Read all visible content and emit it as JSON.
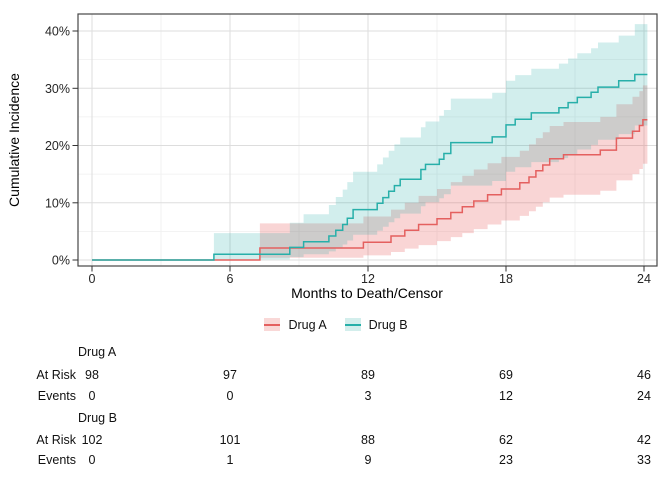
{
  "figure": {
    "y_axis_title": "Cumulative Incidence",
    "x_axis_title": "Months to Death/Censor"
  },
  "legend": {
    "items": [
      {
        "label": "Drug A"
      },
      {
        "label": "Drug B"
      }
    ]
  },
  "colors": {
    "drug_a_line": "#E4605F",
    "drug_a_band": "#E75D5C",
    "drug_a_band_opacity": 0.26,
    "drug_a_key_bg": "#F9D8D7",
    "drug_b_line": "#27AFA9",
    "drug_b_band": "#20AAA5",
    "drug_b_band_opacity": 0.2,
    "drug_b_key_bg": "#D3EEEC",
    "grid_major": "#DDDDDD",
    "grid_minor": "#EFEFEF",
    "panel_border": "#474747",
    "tick": "#333333",
    "text": "#111111"
  },
  "chart_data": {
    "type": "line",
    "subtype": "step-cumulative-incidence-with-confidence-bands",
    "title": "",
    "xlabel": "Months to Death/Censor",
    "ylabel": "Cumulative Incidence",
    "xlim": [
      0,
      24.6
    ],
    "ylim": [
      0,
      43
    ],
    "x_ticks": [
      0,
      6,
      12,
      18,
      24
    ],
    "x_minor_ticks": [
      3,
      9,
      15,
      21
    ],
    "y_ticks": [
      0,
      10,
      20,
      30,
      40
    ],
    "y_tick_labels": [
      "0%",
      "10%",
      "20%",
      "30%",
      "40%"
    ],
    "y_minor_ticks": [
      5,
      15,
      25,
      35
    ],
    "grid": true,
    "legend_position": "bottom",
    "points_format": [
      "month",
      "estimate_pct",
      "ci_lower_pct",
      "ci_upper_pct"
    ],
    "series": [
      {
        "name": "Drug A",
        "color": "#E4605F",
        "points": [
          [
            0,
            0,
            0,
            0
          ],
          [
            7.3,
            2.1,
            0.4,
            6.4
          ],
          [
            11.8,
            3.1,
            0.8,
            7.6
          ],
          [
            13.0,
            4.2,
            1.4,
            8.8
          ],
          [
            13.6,
            5.2,
            2.0,
            10.0
          ],
          [
            14.2,
            6.2,
            2.6,
            11.2
          ],
          [
            15.0,
            7.2,
            3.3,
            12.4
          ],
          [
            15.6,
            8.3,
            4.0,
            13.6
          ],
          [
            16.1,
            9.3,
            4.7,
            14.7
          ],
          [
            16.6,
            10.3,
            5.4,
            15.8
          ],
          [
            17.2,
            11.4,
            6.2,
            16.9
          ],
          [
            17.8,
            12.4,
            6.9,
            18.0
          ],
          [
            18.6,
            13.5,
            7.7,
            19.1
          ],
          [
            19.0,
            14.5,
            8.5,
            20.2
          ],
          [
            19.3,
            15.6,
            9.3,
            21.3
          ],
          [
            19.6,
            16.6,
            10.1,
            22.3
          ],
          [
            19.9,
            17.7,
            10.9,
            23.4
          ],
          [
            20.5,
            18.4,
            11.4,
            24.1
          ],
          [
            22.1,
            19.2,
            12.1,
            25.0
          ],
          [
            22.8,
            21.3,
            13.9,
            27.2
          ],
          [
            23.5,
            22.5,
            15.0,
            28.5
          ],
          [
            23.8,
            23.5,
            15.9,
            29.5
          ],
          [
            23.95,
            24.5,
            16.8,
            30.5
          ],
          [
            24.15,
            24.5,
            16.8,
            30.5
          ]
        ]
      },
      {
        "name": "Drug B",
        "color": "#27AFA9",
        "points": [
          [
            0,
            0,
            0,
            0
          ],
          [
            5.3,
            1.0,
            0.1,
            4.7
          ],
          [
            8.6,
            2.2,
            0.5,
            6.5
          ],
          [
            9.2,
            3.2,
            1.0,
            8.0
          ],
          [
            10.3,
            4.2,
            1.5,
            9.6
          ],
          [
            10.6,
            5.2,
            2.1,
            11.0
          ],
          [
            10.9,
            6.2,
            2.7,
            12.3
          ],
          [
            11.1,
            7.3,
            3.4,
            13.6
          ],
          [
            11.35,
            8.8,
            4.4,
            15.4
          ],
          [
            12.4,
            9.9,
            5.1,
            16.7
          ],
          [
            12.65,
            10.9,
            5.8,
            17.9
          ],
          [
            12.9,
            12.0,
            6.6,
            19.1
          ],
          [
            13.15,
            13.0,
            7.3,
            20.2
          ],
          [
            13.4,
            14.1,
            8.1,
            21.4
          ],
          [
            14.3,
            15.8,
            9.4,
            23.2
          ],
          [
            14.5,
            16.7,
            10.1,
            24.2
          ],
          [
            15.1,
            17.6,
            10.8,
            25.2
          ],
          [
            15.3,
            18.6,
            11.5,
            26.2
          ],
          [
            15.6,
            20.5,
            13.0,
            28.2
          ],
          [
            17.4,
            21.5,
            13.8,
            29.2
          ],
          [
            18.0,
            23.6,
            15.4,
            31.3
          ],
          [
            18.4,
            24.6,
            16.2,
            32.3
          ],
          [
            19.1,
            25.7,
            17.1,
            33.4
          ],
          [
            20.3,
            26.6,
            17.8,
            34.3
          ],
          [
            20.7,
            27.5,
            18.5,
            35.2
          ],
          [
            21.1,
            28.4,
            19.3,
            36.1
          ],
          [
            21.7,
            29.3,
            20.1,
            37.0
          ],
          [
            22.0,
            30.2,
            21.0,
            38.0
          ],
          [
            22.9,
            31.3,
            22.0,
            39.2
          ],
          [
            23.6,
            32.4,
            23.5,
            41.2
          ],
          [
            24.15,
            32.4,
            23.5,
            41.2
          ]
        ]
      }
    ]
  },
  "risk_table": {
    "times": [
      0,
      6,
      12,
      18,
      24
    ],
    "groups": [
      {
        "name": "Drug A",
        "rows": [
          {
            "label": "At Risk",
            "values": [
              "98",
              "97",
              "89",
              "69",
              "46"
            ]
          },
          {
            "label": "Events",
            "values": [
              "0",
              "0",
              "3",
              "12",
              "24"
            ]
          }
        ]
      },
      {
        "name": "Drug B",
        "rows": [
          {
            "label": "At Risk",
            "values": [
              "102",
              "101",
              "88",
              "62",
              "42"
            ]
          },
          {
            "label": "Events",
            "values": [
              "0",
              "1",
              "9",
              "23",
              "33"
            ]
          }
        ]
      }
    ]
  }
}
